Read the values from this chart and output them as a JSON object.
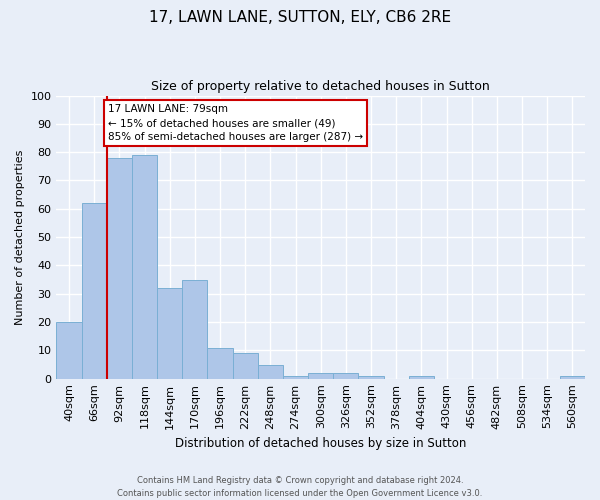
{
  "title1": "17, LAWN LANE, SUTTON, ELY, CB6 2RE",
  "title2": "Size of property relative to detached houses in Sutton",
  "xlabel": "Distribution of detached houses by size in Sutton",
  "ylabel": "Number of detached properties",
  "bar_labels": [
    "40sqm",
    "66sqm",
    "92sqm",
    "118sqm",
    "144sqm",
    "170sqm",
    "196sqm",
    "222sqm",
    "248sqm",
    "274sqm",
    "300sqm",
    "326sqm",
    "352sqm",
    "378sqm",
    "404sqm",
    "430sqm",
    "456sqm",
    "482sqm",
    "508sqm",
    "534sqm",
    "560sqm"
  ],
  "bar_values": [
    20,
    62,
    78,
    79,
    32,
    35,
    11,
    9,
    5,
    1,
    2,
    2,
    1,
    0,
    1,
    0,
    0,
    0,
    0,
    0,
    1
  ],
  "bar_color": "#aec6e8",
  "bar_edge_color": "#7aafd4",
  "property_sqm": 79,
  "annotation_title": "17 LAWN LANE: 79sqm",
  "annotation_line1": "← 15% of detached houses are smaller (49)",
  "annotation_line2": "85% of semi-detached houses are larger (287) →",
  "annotation_box_color": "#ffffff",
  "annotation_box_edge": "#cc0000",
  "vline_color": "#cc0000",
  "ylim": [
    0,
    100
  ],
  "background_color": "#e8eef8",
  "grid_color": "#ffffff",
  "footer1": "Contains HM Land Registry data © Crown copyright and database right 2024.",
  "footer2": "Contains public sector information licensed under the Open Government Licence v3.0."
}
